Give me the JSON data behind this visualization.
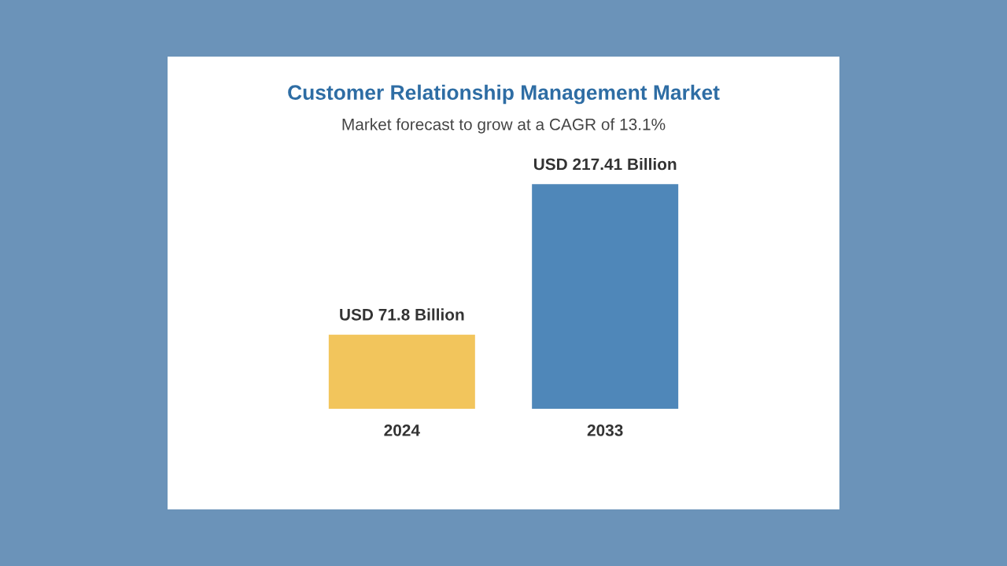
{
  "chart_data": {
    "type": "bar",
    "title": "Customer Relationship Management Market",
    "subtitle": "Market forecast to grow at a CAGR of 13.1%",
    "categories": [
      "2024",
      "2033"
    ],
    "values": [
      71.8,
      217.41
    ],
    "colors": [
      "#f2c55c",
      "#4f87b9"
    ],
    "value_labels": [
      "USD 71.8 Billion",
      "USD 217.41 Billion"
    ]
  }
}
